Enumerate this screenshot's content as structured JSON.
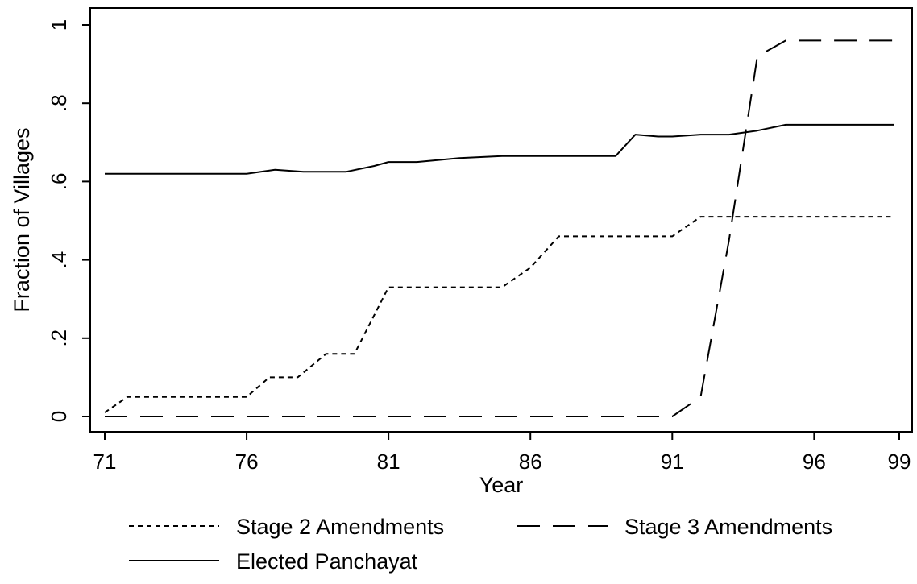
{
  "chart_data": {
    "type": "line",
    "title": "",
    "xlabel": "Year",
    "ylabel": "Fraction of Villages",
    "xlim": [
      71,
      99
    ],
    "ylim": [
      0,
      1
    ],
    "x_ticks": [
      71,
      76,
      81,
      86,
      91,
      96,
      99
    ],
    "x_tick_labels": [
      "71",
      "76",
      "81",
      "86",
      "91",
      "96",
      "99"
    ],
    "y_ticks": [
      0,
      0.2,
      0.4,
      0.6,
      0.8,
      1
    ],
    "y_tick_labels": [
      "0",
      ".2",
      ".4",
      ".6",
      ".8",
      "1"
    ],
    "grid": false,
    "legend_position": "bottom",
    "series": [
      {
        "name": "Stage 2 Amendments",
        "style": "dotted",
        "color": "#000000",
        "points": [
          [
            71,
            0.01
          ],
          [
            71.8,
            0.05
          ],
          [
            76,
            0.05
          ],
          [
            76.8,
            0.1
          ],
          [
            77.8,
            0.1
          ],
          [
            78.8,
            0.16
          ],
          [
            79.8,
            0.16
          ],
          [
            81,
            0.33
          ],
          [
            85,
            0.33
          ],
          [
            86,
            0.38
          ],
          [
            87,
            0.46
          ],
          [
            91,
            0.46
          ],
          [
            92,
            0.51
          ],
          [
            98.8,
            0.51
          ]
        ]
      },
      {
        "name": "Stage 3 Amendments",
        "style": "dashed",
        "color": "#000000",
        "points": [
          [
            71,
            0.0
          ],
          [
            91,
            0.0
          ],
          [
            92,
            0.05
          ],
          [
            93,
            0.45
          ],
          [
            94,
            0.92
          ],
          [
            95,
            0.96
          ],
          [
            98.8,
            0.96
          ]
        ]
      },
      {
        "name": "Elected Panchayat",
        "style": "solid",
        "color": "#000000",
        "points": [
          [
            71,
            0.62
          ],
          [
            76,
            0.62
          ],
          [
            77,
            0.63
          ],
          [
            78,
            0.625
          ],
          [
            79.5,
            0.625
          ],
          [
            80.5,
            0.64
          ],
          [
            81,
            0.65
          ],
          [
            82,
            0.65
          ],
          [
            83.5,
            0.66
          ],
          [
            85,
            0.665
          ],
          [
            86,
            0.665
          ],
          [
            89,
            0.665
          ],
          [
            89.7,
            0.72
          ],
          [
            90.5,
            0.715
          ],
          [
            91,
            0.715
          ],
          [
            92,
            0.72
          ],
          [
            93,
            0.72
          ],
          [
            94,
            0.73
          ],
          [
            95,
            0.745
          ],
          [
            98.8,
            0.745
          ]
        ]
      }
    ]
  }
}
